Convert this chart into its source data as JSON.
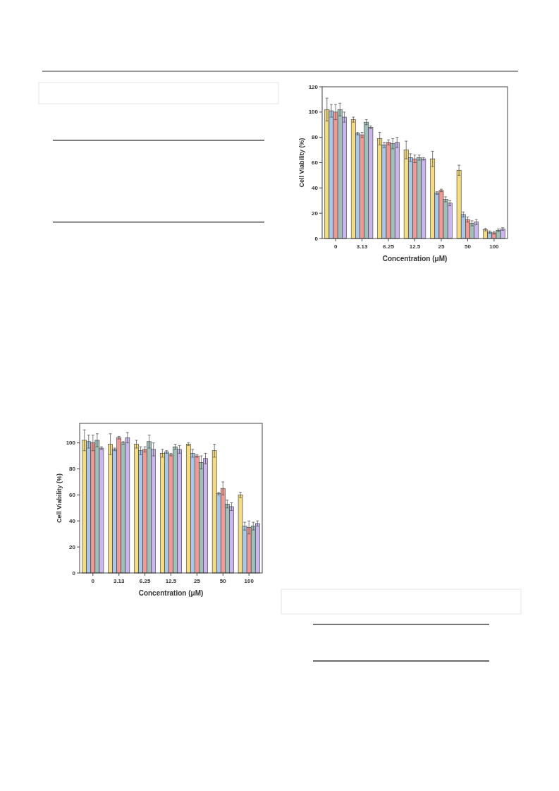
{
  "chart_data": [
    {
      "type": "bar",
      "xlabel": "Concentration (μM)",
      "ylabel": "Cell Viability (%)",
      "categories": [
        "0",
        "3.13",
        "6.25",
        "12.5",
        "25",
        "50",
        "100"
      ],
      "ylim": [
        0,
        120
      ],
      "yticks": [
        0,
        20,
        40,
        60,
        80,
        100,
        120
      ],
      "series": [
        {
          "color": "#f5dc82",
          "values": [
            102,
            94,
            79,
            70,
            63,
            54,
            7
          ],
          "errors": [
            9,
            2,
            5,
            7,
            6,
            4,
            1
          ]
        },
        {
          "color": "#a9c8e8",
          "values": [
            101,
            83,
            74,
            64,
            36,
            19,
            5
          ],
          "errors": [
            5,
            1,
            2,
            3,
            1,
            2,
            1
          ]
        },
        {
          "color": "#f09a96",
          "values": [
            100,
            82,
            76,
            63,
            38,
            15,
            4.5
          ],
          "errors": [
            6,
            2,
            2,
            3,
            1,
            2,
            1
          ]
        },
        {
          "color": "#9fbfb8",
          "values": [
            102,
            92,
            75,
            64,
            31,
            12,
            6.5
          ],
          "errors": [
            5,
            2,
            4,
            2,
            2,
            2,
            1
          ]
        },
        {
          "color": "#c9b6ec",
          "values": [
            96,
            88,
            76,
            63,
            28,
            13,
            7.5
          ],
          "errors": [
            4,
            1,
            4,
            1,
            2,
            2,
            1
          ]
        }
      ]
    },
    {
      "type": "bar",
      "xlabel": "Concentration (μM)",
      "ylabel": "Cell Viability (%)",
      "categories": [
        "0",
        "3.13",
        "6.25",
        "12.5",
        "25",
        "50",
        "100"
      ],
      "ylim": [
        0,
        115
      ],
      "yticks": [
        0,
        20,
        40,
        60,
        80,
        100
      ],
      "series": [
        {
          "color": "#f5dc82",
          "values": [
            102,
            99,
            99,
            92,
            99,
            94,
            60
          ],
          "errors": [
            8,
            8,
            3,
            3,
            1,
            5,
            2
          ]
        },
        {
          "color": "#a9c8e8",
          "values": [
            101,
            95,
            94,
            93,
            92,
            61,
            36
          ],
          "errors": [
            5,
            1,
            3,
            1,
            3,
            1,
            3
          ]
        },
        {
          "color": "#f09a96",
          "values": [
            100,
            104,
            95,
            91,
            90,
            65,
            35
          ],
          "errors": [
            6,
            1,
            2,
            1,
            1,
            5,
            5
          ]
        },
        {
          "color": "#9fbfb8",
          "values": [
            102,
            100,
            101,
            97,
            85,
            53,
            36
          ],
          "errors": [
            5,
            1,
            5,
            2,
            5,
            3,
            3
          ]
        },
        {
          "color": "#c9b6ec",
          "values": [
            96,
            104,
            95,
            95,
            88,
            51,
            38
          ],
          "errors": [
            1,
            4,
            5,
            3,
            4,
            3,
            2
          ]
        }
      ]
    }
  ]
}
